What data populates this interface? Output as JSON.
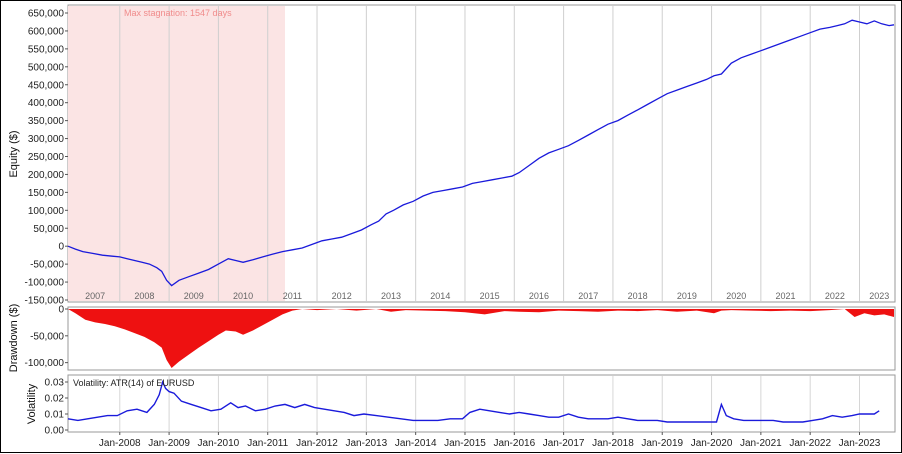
{
  "chart_data": [
    {
      "type": "line",
      "panel": "equity",
      "ylabel": "Equity ($)",
      "ylim": [
        -150000,
        650000
      ],
      "y_ticks": [
        "650,000",
        "600,000",
        "550,000",
        "500,000",
        "450,000",
        "400,000",
        "350,000",
        "300,000",
        "250,000",
        "200,000",
        "150,000",
        "100,000",
        "50,000",
        "0",
        "-50,000",
        "-100,000",
        "-150,000"
      ],
      "y_tick_values": [
        650000,
        600000,
        550000,
        500000,
        450000,
        400000,
        350000,
        300000,
        250000,
        200000,
        150000,
        100000,
        50000,
        0,
        -50000,
        -100000,
        -150000
      ],
      "year_labels": [
        "2007",
        "2008",
        "2009",
        "2010",
        "2011",
        "2012",
        "2013",
        "2014",
        "2015",
        "2016",
        "2017",
        "2018",
        "2019",
        "2020",
        "2021",
        "2022",
        "2023"
      ],
      "year_values": [
        2007.5,
        2008.5,
        2009.5,
        2010.5,
        2011.5,
        2012.5,
        2013.5,
        2014.5,
        2015.5,
        2016.5,
        2017.5,
        2018.5,
        2019.5,
        2020.5,
        2021.5,
        2022.5,
        2023.4
      ],
      "xlim": [
        2006.95,
        2023.72
      ],
      "shaded_region": {
        "start": 2006.95,
        "end": 2011.35,
        "color": "#fbe4e4",
        "label": "Max stagnation: 1547 days"
      },
      "line_color": "#1a1adb",
      "grid": true,
      "series": [
        {
          "x": [
            2006.95,
            2007.1,
            2007.25,
            2007.45,
            2007.65,
            2007.85,
            2008.0,
            2008.15,
            2008.3,
            2008.45,
            2008.6,
            2008.75,
            2008.85,
            2008.95,
            2009.05,
            2009.2,
            2009.4,
            2009.6,
            2009.8,
            2010.0,
            2010.2,
            2010.35,
            2010.5,
            2010.7,
            2010.9,
            2011.1,
            2011.3,
            2011.5,
            2011.7,
            2011.9,
            2012.1,
            2012.3,
            2012.5,
            2012.7,
            2012.9,
            2013.1,
            2013.25,
            2013.4,
            2013.55,
            2013.75,
            2013.95,
            2014.15,
            2014.35,
            2014.55,
            2014.75,
            2014.95,
            2015.15,
            2015.35,
            2015.55,
            2015.75,
            2015.95,
            2016.1,
            2016.3,
            2016.5,
            2016.7,
            2016.9,
            2017.1,
            2017.3,
            2017.5,
            2017.7,
            2017.9,
            2018.1,
            2018.3,
            2018.5,
            2018.7,
            2018.9,
            2019.1,
            2019.3,
            2019.5,
            2019.7,
            2019.9,
            2020.05,
            2020.2,
            2020.4,
            2020.6,
            2020.8,
            2021.0,
            2021.2,
            2021.4,
            2021.6,
            2021.8,
            2022.0,
            2022.2,
            2022.4,
            2022.55,
            2022.7,
            2022.85,
            2023.0,
            2023.15,
            2023.3,
            2023.45,
            2023.6,
            2023.7
          ],
          "y": [
            0,
            -8000,
            -15000,
            -20000,
            -25000,
            -28000,
            -30000,
            -35000,
            -40000,
            -45000,
            -50000,
            -60000,
            -70000,
            -95000,
            -110000,
            -95000,
            -85000,
            -75000,
            -65000,
            -50000,
            -35000,
            -40000,
            -45000,
            -38000,
            -30000,
            -22000,
            -15000,
            -10000,
            -5000,
            5000,
            15000,
            20000,
            25000,
            35000,
            45000,
            60000,
            70000,
            90000,
            100000,
            115000,
            125000,
            140000,
            150000,
            155000,
            160000,
            165000,
            175000,
            180000,
            185000,
            190000,
            195000,
            205000,
            225000,
            245000,
            260000,
            270000,
            280000,
            295000,
            310000,
            325000,
            340000,
            350000,
            365000,
            380000,
            395000,
            410000,
            425000,
            435000,
            445000,
            455000,
            465000,
            475000,
            480000,
            510000,
            525000,
            535000,
            545000,
            555000,
            565000,
            575000,
            585000,
            595000,
            605000,
            610000,
            615000,
            620000,
            630000,
            625000,
            620000,
            628000,
            620000,
            615000,
            617000
          ]
        }
      ]
    },
    {
      "type": "area",
      "panel": "drawdown",
      "ylabel": "Drawdown ($)",
      "ylim": [
        -110000,
        0
      ],
      "y_ticks": [
        "0",
        "-50,000",
        "-100,000"
      ],
      "y_tick_values": [
        0,
        -50000,
        -100000
      ],
      "fill_color": "#ee1111",
      "series": [
        {
          "x": [
            2006.95,
            2007.1,
            2007.3,
            2007.5,
            2007.7,
            2007.9,
            2008.1,
            2008.3,
            2008.5,
            2008.7,
            2008.85,
            2008.95,
            2009.05,
            2009.2,
            2009.4,
            2009.6,
            2009.8,
            2010.0,
            2010.15,
            2010.35,
            2010.5,
            2010.7,
            2010.9,
            2011.1,
            2011.3,
            2011.5,
            2011.7,
            2012.0,
            2012.4,
            2012.8,
            2013.2,
            2013.5,
            2013.8,
            2014.2,
            2014.6,
            2015.0,
            2015.4,
            2015.8,
            2016.1,
            2016.5,
            2016.9,
            2017.3,
            2017.7,
            2018.1,
            2018.5,
            2018.9,
            2019.3,
            2019.7,
            2020.05,
            2020.2,
            2020.4,
            2020.8,
            2021.2,
            2021.6,
            2022.0,
            2022.4,
            2022.7,
            2022.9,
            2023.1,
            2023.3,
            2023.5,
            2023.7
          ],
          "y": [
            0,
            -8000,
            -20000,
            -25000,
            -28000,
            -32000,
            -38000,
            -45000,
            -52000,
            -62000,
            -72000,
            -95000,
            -110000,
            -98000,
            -85000,
            -72000,
            -60000,
            -48000,
            -40000,
            -42000,
            -48000,
            -40000,
            -30000,
            -20000,
            -10000,
            -3000,
            0,
            -2000,
            0,
            -3000,
            0,
            -5000,
            -2000,
            -3000,
            -4000,
            -6000,
            -10000,
            -4000,
            -5000,
            -6000,
            -3000,
            -4000,
            -5000,
            -3000,
            -4000,
            -2000,
            -5000,
            -3000,
            -8000,
            -3000,
            -2000,
            -3000,
            -4000,
            -3000,
            -4000,
            -2000,
            0,
            -15000,
            -8000,
            -12000,
            -10000,
            -15000
          ]
        }
      ]
    },
    {
      "type": "line",
      "panel": "volatility",
      "title": "Volatility: ATR(14) of EURUSD",
      "ylabel": "Volatility",
      "ylim": [
        0,
        0.03
      ],
      "y_ticks": [
        "0.03",
        "0.02",
        "0.01",
        "0.00"
      ],
      "y_tick_values": [
        0.03,
        0.02,
        0.01,
        0.0
      ],
      "x_ticks": [
        "Jan-2008",
        "Jan-2009",
        "Jan-2010",
        "Jan-2011",
        "Jan-2012",
        "Jan-2013",
        "Jan-2014",
        "Jan-2015",
        "Jan-2016",
        "Jan-2017",
        "Jan-2018",
        "Jan-2019",
        "Jan-2020",
        "Jan-2021",
        "Jan-2022",
        "Jan-2023"
      ],
      "x_tick_values": [
        2008,
        2009,
        2010,
        2011,
        2012,
        2013,
        2014,
        2015,
        2016,
        2017,
        2018,
        2019,
        2020,
        2021,
        2022,
        2023
      ],
      "line_color": "#1a1adb",
      "series": [
        {
          "x": [
            2006.95,
            2007.15,
            2007.35,
            2007.55,
            2007.75,
            2007.95,
            2008.15,
            2008.35,
            2008.55,
            2008.7,
            2008.8,
            2008.87,
            2008.93,
            2009.0,
            2009.1,
            2009.25,
            2009.45,
            2009.65,
            2009.85,
            2010.05,
            2010.25,
            2010.4,
            2010.55,
            2010.75,
            2010.95,
            2011.15,
            2011.35,
            2011.55,
            2011.75,
            2011.95,
            2012.15,
            2012.35,
            2012.55,
            2012.75,
            2012.95,
            2013.2,
            2013.45,
            2013.7,
            2013.95,
            2014.2,
            2014.45,
            2014.7,
            2014.95,
            2015.1,
            2015.3,
            2015.5,
            2015.7,
            2015.9,
            2016.1,
            2016.3,
            2016.5,
            2016.7,
            2016.9,
            2017.1,
            2017.3,
            2017.5,
            2017.7,
            2017.9,
            2018.1,
            2018.3,
            2018.5,
            2018.7,
            2018.9,
            2019.1,
            2019.3,
            2019.5,
            2019.7,
            2019.9,
            2020.1,
            2020.2,
            2020.3,
            2020.45,
            2020.65,
            2020.85,
            2021.05,
            2021.25,
            2021.45,
            2021.65,
            2021.85,
            2022.05,
            2022.25,
            2022.45,
            2022.65,
            2022.85,
            2023.0,
            2023.15,
            2023.3,
            2023.4
          ],
          "y": [
            0.007,
            0.006,
            0.007,
            0.008,
            0.009,
            0.009,
            0.012,
            0.013,
            0.011,
            0.016,
            0.022,
            0.03,
            0.026,
            0.024,
            0.023,
            0.018,
            0.016,
            0.014,
            0.012,
            0.013,
            0.017,
            0.014,
            0.015,
            0.012,
            0.013,
            0.015,
            0.016,
            0.014,
            0.016,
            0.014,
            0.013,
            0.012,
            0.011,
            0.009,
            0.01,
            0.009,
            0.008,
            0.007,
            0.006,
            0.006,
            0.006,
            0.007,
            0.007,
            0.011,
            0.013,
            0.012,
            0.011,
            0.01,
            0.011,
            0.01,
            0.009,
            0.008,
            0.008,
            0.01,
            0.008,
            0.007,
            0.007,
            0.007,
            0.008,
            0.007,
            0.006,
            0.006,
            0.006,
            0.005,
            0.005,
            0.005,
            0.005,
            0.005,
            0.005,
            0.016,
            0.009,
            0.007,
            0.006,
            0.006,
            0.006,
            0.006,
            0.005,
            0.005,
            0.005,
            0.006,
            0.007,
            0.009,
            0.008,
            0.009,
            0.01,
            0.01,
            0.01,
            0.012
          ]
        }
      ]
    }
  ]
}
